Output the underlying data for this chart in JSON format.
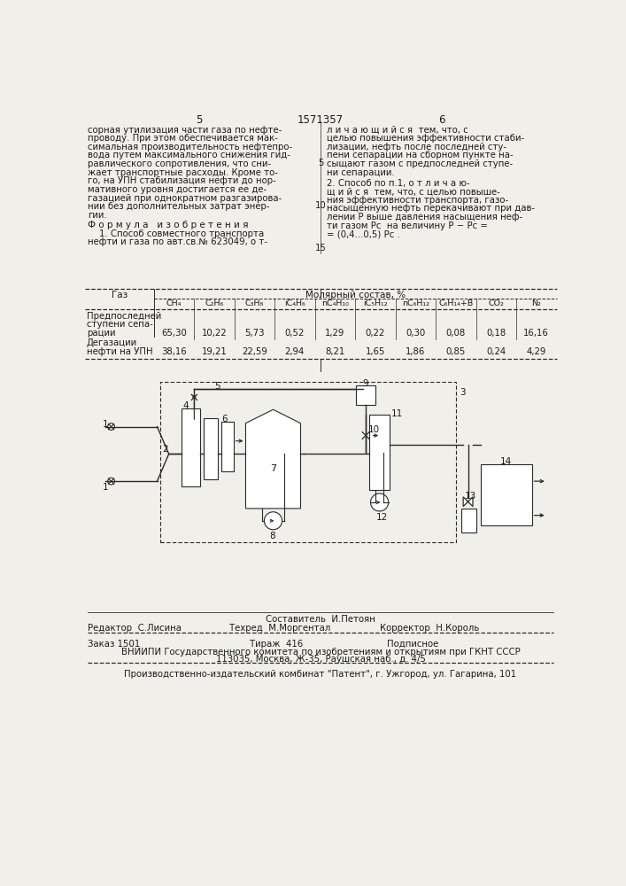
{
  "page_num_left": "5",
  "page_num_center": "1571357",
  "page_num_right": "6",
  "col1_text": [
    "сорная утилизация части газа по нефте-",
    "проводу. При этом обеспечивается мак-",
    "симальная производительность нефтепро-",
    "вода путем максимального снижения гид-",
    "равлического сопротивления, что сни-",
    "жает транспортные расходы. Кроме то-",
    "го, на УПН стабилизация нефти до нор-",
    "мативного уровня достигается ее де-",
    "газацией при однократном разгазирова-",
    "нии без дополнительных затрат энер-",
    "гии."
  ],
  "col2_text_top": [
    "л и ч а ю щ и й с я  тем, что, с",
    "целью повышения эффективности стаби-",
    "лизации, нефть после последней сту-",
    "пени сепарации на сборном пункте на-",
    "сыщают газом с предпоследней ступе-",
    "ни сепарации."
  ],
  "formula_header": "Ф о р м у л а   и з о б р е т е н и я",
  "formula_text": [
    "    1. Способ совместного транспорта",
    "нефти и газа по авт.св.№ 623049, о т-"
  ],
  "linenum_5": "5",
  "linenum_10": "10",
  "linenum_15": "15",
  "claim2_text": [
    "2. Способ по п.1, о т л и ч а ю-",
    "щ и й с я  тем, что, с целью повыше-",
    "ния эффективности транспорта, газо-",
    "насыщенную нефть перекачивают при дав-",
    "лении P выше давления насыщения неф-",
    "ти газом Pc  на величину P − Pc =",
    "= (0,4...0,5) Pc ."
  ],
  "table_header_gas": "Газ",
  "table_header_molar": "Молярный состав, %",
  "table_columns": [
    "CH₄",
    "C₂H₆",
    "C₃H₈",
    "iC₄H₆",
    "nC₄H₁₀",
    "iC₅H₁₂",
    "nC₆H₁₂",
    "C₆H₁₄+B",
    "CO₂",
    "N₂"
  ],
  "row1_label": [
    "Предпоследней",
    "ступени сепа-",
    "рации"
  ],
  "row1_values": [
    "65,30",
    "10,22",
    "5,73",
    "0,52",
    "1,29",
    "0,22",
    "0,30",
    "0,08",
    "0,18",
    "16,16"
  ],
  "row2_label": [
    "Дегазации",
    "нефти на УПН"
  ],
  "row2_values": [
    "38,16",
    "19,21",
    "22,59",
    "2,94",
    "8,21",
    "1,65",
    "1,86",
    "0,85",
    "0,24",
    "4,29"
  ],
  "footer_composer": "Составитель  И.Петоян",
  "footer_editor": "Редактор  С.Лисина",
  "footer_techred": "Техред  М.Моргентал",
  "footer_corrector": "Корректор  Н.Король",
  "footer_order": "Заказ 1501",
  "footer_tirazh": "Тираж  416",
  "footer_podpis": "Подписное",
  "footer_vniiipi": "ВНИИПИ Государственного комитета по изобретениям и открытиям при ГКНТ СССР",
  "footer_address": "113035, Москва, Ж-35, Раушская наб., д. 4/5",
  "footer_factory": "Производственно-издательский комбинат \"Патент\", г. Ужгород, ул. Гагарина, 101",
  "bg_color": "#f0efea",
  "text_color": "#1a1a1a",
  "line_color": "#2a2a2a"
}
